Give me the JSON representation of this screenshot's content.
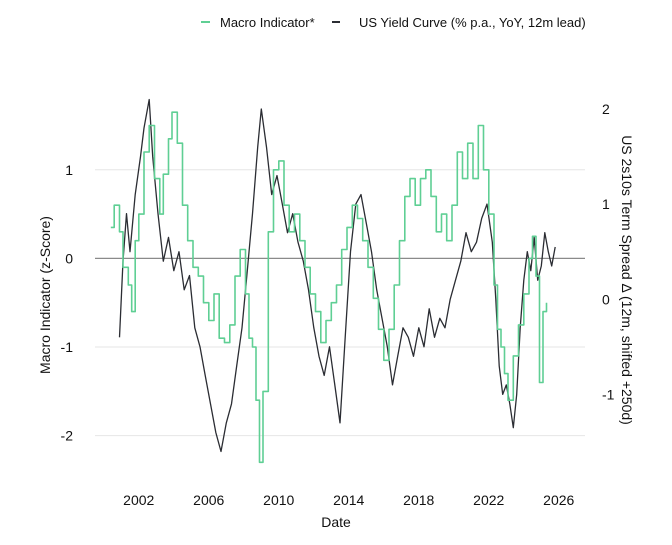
{
  "chart_data": {
    "type": "line",
    "title": "",
    "xlabel": "Date",
    "ylabel_left": "Macro Indicator (z-Score)",
    "ylabel_right": "US 2s10s Term Spread Δ (12m, shifted +250d)",
    "x_ticks": [
      "2002",
      "2006",
      "2010",
      "2014",
      "2018",
      "2022",
      "2026"
    ],
    "y_left_ticks": [
      "1",
      "0",
      "-1",
      "-2"
    ],
    "y_right_ticks": [
      "2",
      "1",
      "0",
      "-1"
    ],
    "xlim": [
      1999.5,
      2027.5
    ],
    "ylim_left": [
      -2.5,
      1.9
    ],
    "ylim_right": [
      -1.9,
      2.2
    ],
    "grid": true,
    "legend_position": "top-right",
    "colors": {
      "macro": "#5fcf94",
      "yield": "#2b2d33",
      "zero_line": "#8a8a8a",
      "grid": "#e6e6e6"
    },
    "series": [
      {
        "name": "Macro Indicator*",
        "axis": "left",
        "points": [
          [
            2000.4,
            0.35
          ],
          [
            2000.6,
            0.6
          ],
          [
            2000.9,
            0.3
          ],
          [
            2001.1,
            -0.1
          ],
          [
            2001.4,
            -0.3
          ],
          [
            2001.6,
            -0.6
          ],
          [
            2001.8,
            0.2
          ],
          [
            2002.0,
            0.5
          ],
          [
            2002.3,
            1.2
          ],
          [
            2002.6,
            1.5
          ],
          [
            2002.9,
            0.9
          ],
          [
            2003.2,
            0.5
          ],
          [
            2003.4,
            0.95
          ],
          [
            2003.7,
            1.35
          ],
          [
            2003.9,
            1.65
          ],
          [
            2004.2,
            1.3
          ],
          [
            2004.5,
            0.6
          ],
          [
            2004.8,
            0.2
          ],
          [
            2005.1,
            -0.1
          ],
          [
            2005.4,
            -0.2
          ],
          [
            2005.7,
            -0.5
          ],
          [
            2006.0,
            -0.7
          ],
          [
            2006.3,
            -0.4
          ],
          [
            2006.6,
            -0.9
          ],
          [
            2006.9,
            -0.95
          ],
          [
            2007.2,
            -0.75
          ],
          [
            2007.5,
            -0.2
          ],
          [
            2007.8,
            0.1
          ],
          [
            2008.1,
            -0.4
          ],
          [
            2008.3,
            -0.9
          ],
          [
            2008.5,
            -1.0
          ],
          [
            2008.7,
            -1.6
          ],
          [
            2008.9,
            -2.3
          ],
          [
            2009.1,
            -1.5
          ],
          [
            2009.4,
            0.3
          ],
          [
            2009.7,
            1.0
          ],
          [
            2010.0,
            1.1
          ],
          [
            2010.3,
            0.6
          ],
          [
            2010.6,
            0.3
          ],
          [
            2010.9,
            0.5
          ],
          [
            2011.2,
            0.2
          ],
          [
            2011.5,
            -0.1
          ],
          [
            2011.8,
            -0.4
          ],
          [
            2012.1,
            -0.6
          ],
          [
            2012.4,
            -0.95
          ],
          [
            2012.7,
            -0.7
          ],
          [
            2013.0,
            -0.5
          ],
          [
            2013.3,
            -0.3
          ],
          [
            2013.6,
            0.1
          ],
          [
            2013.9,
            0.35
          ],
          [
            2014.2,
            0.6
          ],
          [
            2014.5,
            0.45
          ],
          [
            2014.8,
            0.2
          ],
          [
            2015.1,
            -0.1
          ],
          [
            2015.4,
            -0.45
          ],
          [
            2015.7,
            -0.8
          ],
          [
            2016.0,
            -1.15
          ],
          [
            2016.3,
            -0.8
          ],
          [
            2016.6,
            -0.3
          ],
          [
            2016.9,
            0.2
          ],
          [
            2017.2,
            0.7
          ],
          [
            2017.5,
            0.9
          ],
          [
            2017.8,
            0.6
          ],
          [
            2018.1,
            0.9
          ],
          [
            2018.4,
            1.0
          ],
          [
            2018.7,
            0.7
          ],
          [
            2019.0,
            0.3
          ],
          [
            2019.3,
            0.5
          ],
          [
            2019.6,
            0.2
          ],
          [
            2019.9,
            0.6
          ],
          [
            2020.2,
            1.2
          ],
          [
            2020.5,
            0.9
          ],
          [
            2020.8,
            1.3
          ],
          [
            2021.1,
            0.9
          ],
          [
            2021.4,
            1.5
          ],
          [
            2021.7,
            1.0
          ],
          [
            2022.0,
            0.5
          ],
          [
            2022.3,
            -0.3
          ],
          [
            2022.5,
            -0.8
          ],
          [
            2022.7,
            -1.0
          ],
          [
            2022.9,
            -1.3
          ],
          [
            2023.1,
            -1.6
          ],
          [
            2023.4,
            -1.1
          ],
          [
            2023.7,
            -0.75
          ],
          [
            2024.0,
            -0.4
          ],
          [
            2024.3,
            0.0
          ],
          [
            2024.5,
            0.25
          ],
          [
            2024.7,
            -0.2
          ],
          [
            2024.9,
            -1.4
          ],
          [
            2025.1,
            -0.6
          ],
          [
            2025.3,
            -0.5
          ]
        ]
      },
      {
        "name": "US Yield Curve (% p.a., YoY, 12m lead)",
        "axis": "right",
        "points": [
          [
            2000.9,
            -0.4
          ],
          [
            2001.1,
            0.4
          ],
          [
            2001.3,
            0.9
          ],
          [
            2001.5,
            0.5
          ],
          [
            2001.8,
            1.1
          ],
          [
            2002.1,
            1.5
          ],
          [
            2002.3,
            1.8
          ],
          [
            2002.6,
            2.1
          ],
          [
            2002.8,
            1.5
          ],
          [
            2003.1,
            0.9
          ],
          [
            2003.4,
            0.4
          ],
          [
            2003.7,
            0.65
          ],
          [
            2004.0,
            0.3
          ],
          [
            2004.3,
            0.5
          ],
          [
            2004.6,
            0.1
          ],
          [
            2004.9,
            0.25
          ],
          [
            2005.2,
            -0.3
          ],
          [
            2005.5,
            -0.5
          ],
          [
            2005.8,
            -0.8
          ],
          [
            2006.1,
            -1.1
          ],
          [
            2006.4,
            -1.4
          ],
          [
            2006.7,
            -1.6
          ],
          [
            2007.0,
            -1.3
          ],
          [
            2007.3,
            -1.1
          ],
          [
            2007.6,
            -0.7
          ],
          [
            2007.9,
            -0.3
          ],
          [
            2008.2,
            0.3
          ],
          [
            2008.5,
            0.9
          ],
          [
            2008.8,
            1.6
          ],
          [
            2009.0,
            2.0
          ],
          [
            2009.3,
            1.6
          ],
          [
            2009.6,
            1.1
          ],
          [
            2009.9,
            1.3
          ],
          [
            2010.2,
            1.0
          ],
          [
            2010.5,
            0.7
          ],
          [
            2010.8,
            0.9
          ],
          [
            2011.1,
            0.6
          ],
          [
            2011.4,
            0.4
          ],
          [
            2011.7,
            0.1
          ],
          [
            2012.0,
            -0.3
          ],
          [
            2012.3,
            -0.6
          ],
          [
            2012.6,
            -0.8
          ],
          [
            2012.9,
            -0.5
          ],
          [
            2013.2,
            -0.9
          ],
          [
            2013.5,
            -1.3
          ],
          [
            2013.8,
            -0.4
          ],
          [
            2014.1,
            0.5
          ],
          [
            2014.4,
            1.0
          ],
          [
            2014.7,
            1.1
          ],
          [
            2015.0,
            0.8
          ],
          [
            2015.3,
            0.5
          ],
          [
            2015.6,
            0.1
          ],
          [
            2015.9,
            -0.2
          ],
          [
            2016.2,
            -0.5
          ],
          [
            2016.5,
            -0.9
          ],
          [
            2016.8,
            -0.6
          ],
          [
            2017.1,
            -0.3
          ],
          [
            2017.4,
            -0.4
          ],
          [
            2017.7,
            -0.6
          ],
          [
            2018.0,
            -0.3
          ],
          [
            2018.3,
            -0.5
          ],
          [
            2018.6,
            -0.1
          ],
          [
            2018.9,
            -0.4
          ],
          [
            2019.2,
            -0.2
          ],
          [
            2019.5,
            -0.3
          ],
          [
            2019.8,
            0.0
          ],
          [
            2020.1,
            0.2
          ],
          [
            2020.4,
            0.4
          ],
          [
            2020.7,
            0.7
          ],
          [
            2021.0,
            0.5
          ],
          [
            2021.3,
            0.6
          ],
          [
            2021.6,
            0.85
          ],
          [
            2021.9,
            1.0
          ],
          [
            2022.2,
            0.6
          ],
          [
            2022.4,
            0.0
          ],
          [
            2022.6,
            -0.7
          ],
          [
            2022.8,
            -1.0
          ],
          [
            2023.0,
            -0.9
          ],
          [
            2023.2,
            -1.1
          ],
          [
            2023.4,
            -1.35
          ],
          [
            2023.6,
            -1.0
          ],
          [
            2023.8,
            -0.3
          ],
          [
            2024.0,
            0.2
          ],
          [
            2024.2,
            0.5
          ],
          [
            2024.4,
            0.3
          ],
          [
            2024.6,
            0.65
          ],
          [
            2024.8,
            0.2
          ],
          [
            2025.0,
            0.35
          ],
          [
            2025.2,
            0.7
          ],
          [
            2025.4,
            0.5
          ],
          [
            2025.6,
            0.35
          ],
          [
            2025.8,
            0.55
          ]
        ]
      }
    ]
  }
}
